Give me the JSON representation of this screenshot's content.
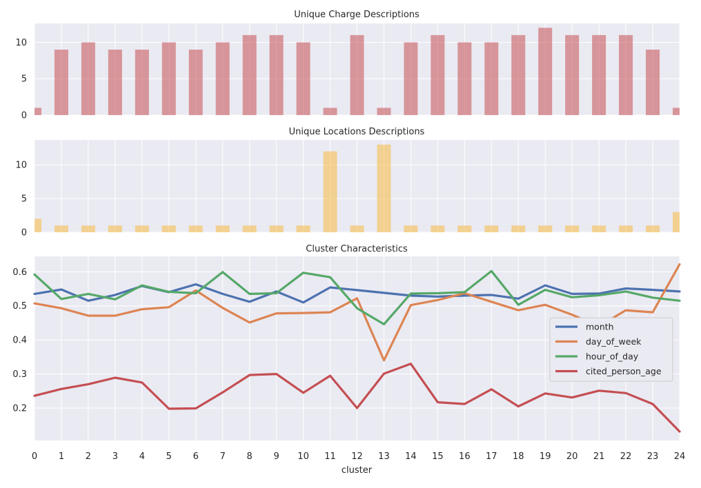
{
  "chart_data": [
    {
      "type": "bar",
      "title": "Unique Charge Descriptions",
      "color": "#c44e52",
      "opacity": 0.55,
      "categories": [
        "0",
        "1",
        "2",
        "3",
        "4",
        "5",
        "6",
        "7",
        "8",
        "9",
        "10",
        "11",
        "12",
        "13",
        "14",
        "15",
        "16",
        "17",
        "18",
        "19",
        "20",
        "21",
        "22",
        "23",
        "24"
      ],
      "values": [
        1,
        9,
        10,
        9,
        9,
        10,
        9,
        10,
        11,
        11,
        10,
        1,
        11,
        1,
        10,
        11,
        10,
        10,
        11,
        12,
        11,
        11,
        11,
        9,
        1
      ],
      "ylim": [
        0,
        12.6
      ],
      "yticks": [
        0,
        5,
        10
      ],
      "grid": true
    },
    {
      "type": "bar",
      "title": "Unique Locations Descriptions",
      "color": "#f5b942",
      "opacity": 0.55,
      "categories": [
        "0",
        "1",
        "2",
        "3",
        "4",
        "5",
        "6",
        "7",
        "8",
        "9",
        "10",
        "11",
        "12",
        "13",
        "14",
        "15",
        "16",
        "17",
        "18",
        "19",
        "20",
        "21",
        "22",
        "23",
        "24"
      ],
      "values": [
        2,
        1,
        1,
        1,
        1,
        1,
        1,
        1,
        1,
        1,
        1,
        12,
        1,
        13,
        1,
        1,
        1,
        1,
        1,
        1,
        1,
        1,
        1,
        1,
        3
      ],
      "ylim": [
        0,
        13.7
      ],
      "yticks": [
        0,
        5,
        10
      ],
      "grid": true
    },
    {
      "type": "line",
      "title": "Cluster Characteristics",
      "xlabel": "cluster",
      "ylabel": "",
      "x": [
        0,
        1,
        2,
        3,
        4,
        5,
        6,
        7,
        8,
        9,
        10,
        11,
        12,
        13,
        14,
        15,
        16,
        17,
        18,
        19,
        20,
        21,
        22,
        23,
        24
      ],
      "xlim": [
        0,
        24
      ],
      "ylim": [
        0.105,
        0.645
      ],
      "yticks": [
        0.2,
        0.3,
        0.4,
        0.5,
        0.6
      ],
      "grid": true,
      "legend": "right",
      "series": [
        {
          "name": "month",
          "color": "#4c72b0",
          "values": [
            0.535,
            0.548,
            0.515,
            0.532,
            0.558,
            0.54,
            0.563,
            0.535,
            0.512,
            0.542,
            0.51,
            0.554,
            0.546,
            0.538,
            0.53,
            0.527,
            0.53,
            0.532,
            0.521,
            0.56,
            0.535,
            0.536,
            0.551,
            0.547,
            0.542
          ]
        },
        {
          "name": "day_of_week",
          "color": "#dd8452",
          "values": [
            0.507,
            0.493,
            0.471,
            0.471,
            0.49,
            0.496,
            0.545,
            0.494,
            0.451,
            0.478,
            0.479,
            0.481,
            0.522,
            0.34,
            0.502,
            0.517,
            0.537,
            0.512,
            0.487,
            0.503,
            0.474,
            0.44,
            0.487,
            0.481,
            0.622
          ]
        },
        {
          "name": "hour_of_day",
          "color": "#55a868",
          "values": [
            0.592,
            0.52,
            0.535,
            0.519,
            0.56,
            0.541,
            0.537,
            0.599,
            0.535,
            0.537,
            0.597,
            0.584,
            0.493,
            0.446,
            0.536,
            0.537,
            0.54,
            0.602,
            0.503,
            0.547,
            0.525,
            0.531,
            0.542,
            0.524,
            0.515
          ]
        },
        {
          "name": "cited_person_age",
          "color": "#c44e52",
          "values": [
            0.236,
            0.256,
            0.27,
            0.289,
            0.275,
            0.198,
            0.199,
            0.246,
            0.297,
            0.3,
            0.245,
            0.295,
            0.2,
            0.301,
            0.33,
            0.217,
            0.212,
            0.255,
            0.205,
            0.243,
            0.231,
            0.251,
            0.244,
            0.212,
            0.131
          ]
        }
      ]
    }
  ]
}
